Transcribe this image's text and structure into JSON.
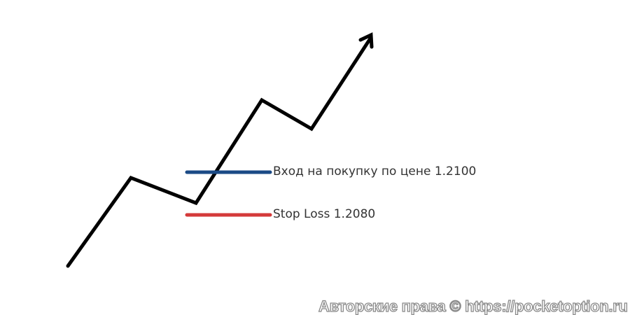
{
  "labels": {
    "entry": "Вход на покупку по цене 1.2100",
    "stop_loss": "Stop Loss 1.2080"
  },
  "watermark": "Авторские права © https://pocketoption.ru",
  "colors": {
    "price_path": "#000000",
    "entry_line": "#1b4a86",
    "stop_loss_line": "#d43a3a"
  }
}
